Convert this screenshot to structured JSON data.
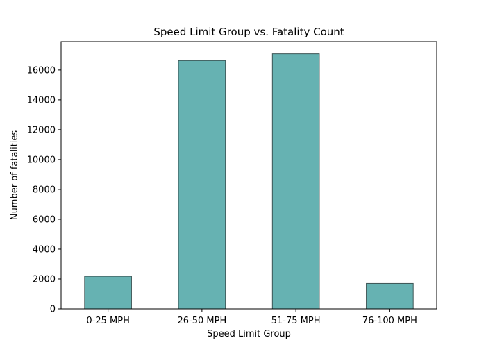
{
  "chart_data": {
    "type": "bar",
    "title": "Speed Limit Group vs. Fatality Count",
    "xlabel": "Speed Limit Group",
    "ylabel": "Number of fatalities",
    "categories": [
      "0-25 MPH",
      "26-50 MPH",
      "51-75 MPH",
      "76-100 MPH"
    ],
    "values": [
      2180,
      16630,
      17080,
      1700
    ],
    "ylim": [
      0,
      17900
    ],
    "yticks": [
      0,
      2000,
      4000,
      6000,
      8000,
      10000,
      12000,
      14000,
      16000
    ],
    "grid": false,
    "bar_color": "#66b2b2",
    "bar_edge_color": "#3d5555"
  }
}
